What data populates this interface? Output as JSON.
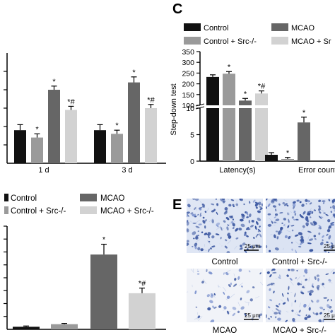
{
  "colors": {
    "control": "#111111",
    "control_src": "#9a9a9a",
    "mcao": "#666666",
    "mcao_src": "#d2d2d2",
    "stain_dark": "#3a56a0",
    "stain_bg": "#dde5f4"
  },
  "chart_data": [
    {
      "panel": "",
      "type": "bar",
      "categories": [
        "1 d",
        "3 d"
      ],
      "series": [
        {
          "name": "Control",
          "values": [
            38,
            38
          ],
          "errors": [
            3,
            3
          ],
          "marks": [
            "",
            ""
          ]
        },
        {
          "name": "Control + Src-/-",
          "values": [
            34,
            36
          ],
          "errors": [
            2,
            2
          ],
          "marks": [
            "*",
            "*"
          ]
        },
        {
          "name": "MCAO",
          "values": [
            60,
            64
          ],
          "errors": [
            2,
            3
          ],
          "marks": [
            "*",
            "*"
          ]
        },
        {
          "name": "MCAO + Src-/-",
          "values": [
            49,
            50
          ],
          "errors": [
            2,
            2
          ],
          "marks": [
            "*#",
            "*#"
          ]
        }
      ],
      "ylim": [
        20,
        80
      ]
    },
    {
      "panel": "C",
      "type": "bar",
      "legend": [
        "Control",
        "MCAO",
        "Control + Src-/-",
        "MCAO + Sr"
      ],
      "ylabel": "Step-down test",
      "categories": [
        "Latency(s)",
        "Error counts"
      ],
      "series": [
        {
          "name": "Control",
          "values": [
            232,
            1.2
          ],
          "errors": [
            10,
            0.4
          ],
          "marks": [
            "",
            ""
          ]
        },
        {
          "name": "Control + Src-/-",
          "values": [
            247,
            0.4
          ],
          "errors": [
            10,
            0.3
          ],
          "marks": [
            "*",
            "*"
          ]
        },
        {
          "name": "MCAO",
          "values": [
            122,
            7.3
          ],
          "errors": [
            10,
            1.0
          ],
          "marks": [
            "*",
            "*"
          ]
        },
        {
          "name": "MCAO + Src-/-",
          "values": [
            155,
            null
          ],
          "errors": [
            12,
            null
          ],
          "marks": [
            "*#",
            ""
          ]
        }
      ],
      "yticks_upper": [
        100,
        150,
        200,
        250,
        300,
        350
      ],
      "yticks_lower": [
        0,
        5,
        10
      ],
      "axis_break": [
        10,
        100
      ]
    },
    {
      "panel": "",
      "type": "bar",
      "legend": [
        "Control",
        "MCAO",
        "Control + Src-/-",
        "MCAO + Src-/-"
      ],
      "categories": [
        "Control",
        "Control + Src-/-",
        "MCAO",
        "MCAO + Src-/-"
      ],
      "values": [
        1,
        2,
        29,
        14
      ],
      "errors": [
        0.3,
        0.3,
        4,
        2
      ],
      "marks": [
        "",
        "",
        "*",
        "*#"
      ],
      "ylim": [
        0,
        40
      ]
    }
  ],
  "panel_e": {
    "letter": "E",
    "scale_bar": "25 μm",
    "labels": [
      "Control",
      "Control + Src-/-",
      "MCAO",
      "MCAO + Src-/-"
    ]
  }
}
